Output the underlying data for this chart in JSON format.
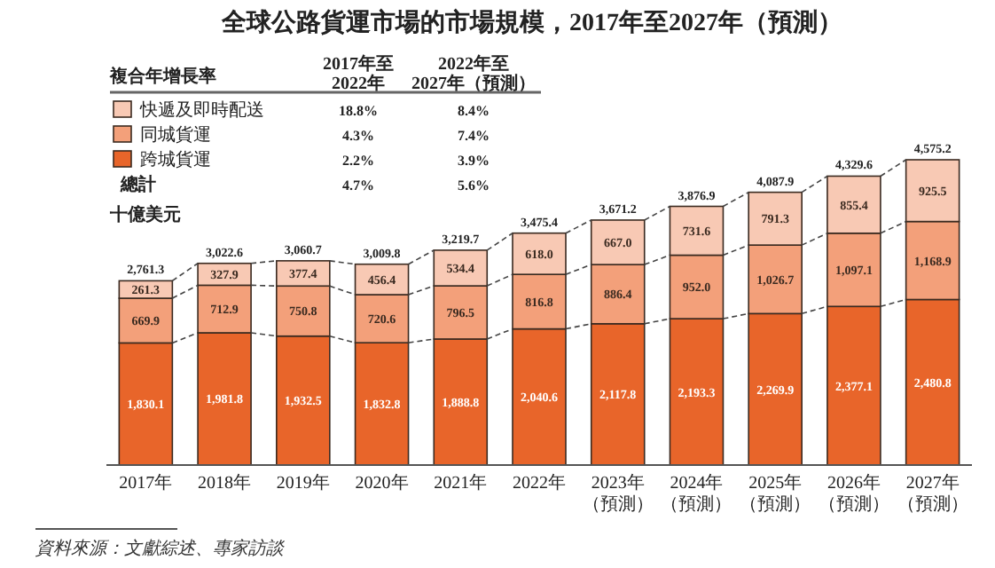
{
  "chart_data": {
    "type": "bar",
    "stacked": true,
    "legend": "top left",
    "title": "全球公路貨運市場的市場規模，2017年至2027年（預測）",
    "ylabel": "十億美元",
    "categories": [
      "2017年",
      "2018年",
      "2019年",
      "2020年",
      "2021年",
      "2022年",
      "2023年（預測）",
      "2024年（預測）",
      "2025年（預測）",
      "2026年（預測）",
      "2027年（預測）"
    ],
    "series": [
      {
        "name": "跨城貨運",
        "color": "#e8652a",
        "values": [
          1830.1,
          1981.8,
          1932.5,
          1832.8,
          1888.8,
          2040.6,
          2117.8,
          2193.3,
          2269.9,
          2377.1,
          2480.8
        ],
        "value_labels": [
          "1,830.1",
          "1,981.8",
          "1,932.5",
          "1,832.8",
          "1,888.8",
          "2,040.6",
          "2,117.8",
          "2,193.3",
          "2,269.9",
          "2,377.1",
          "2,480.8"
        ]
      },
      {
        "name": "同城貨運",
        "color": "#f3a07a",
        "values": [
          669.9,
          712.9,
          750.8,
          720.6,
          796.5,
          816.8,
          886.4,
          952.0,
          1026.7,
          1097.1,
          1168.9
        ],
        "value_labels": [
          "669.9",
          "712.9",
          "750.8",
          "720.6",
          "796.5",
          "816.8",
          "886.4",
          "952.0",
          "1,026.7",
          "1,097.1",
          "1,168.9"
        ]
      },
      {
        "name": "快遞及即時配送",
        "color": "#f8c9b4",
        "values": [
          261.3,
          327.9,
          377.4,
          456.4,
          534.4,
          618.0,
          667.0,
          731.6,
          791.3,
          855.4,
          925.5
        ],
        "value_labels": [
          "261.3",
          "327.9",
          "377.4",
          "456.4",
          "534.4",
          "618.0",
          "667.0",
          "731.6",
          "791.3",
          "855.4",
          "925.5"
        ]
      }
    ],
    "totals": [
      "2,761.3",
      "3,022.6",
      "3,060.7",
      "3,009.8",
      "3,219.7",
      "3,475.4",
      "3,671.2",
      "3,876.9",
      "4,087.9",
      "4,329.6",
      "4,575.2"
    ],
    "annotations": [
      "複合年增長率",
      "2017年至\n2022年",
      "2022年至\n2027年（預測）",
      "18.8%",
      "8.4%",
      "4.3%",
      "7.4%",
      "2.2%",
      "3.9%",
      "總計",
      "4.7%",
      "5.6%",
      "資料來源：文獻綜述、專家訪談"
    ]
  }
}
